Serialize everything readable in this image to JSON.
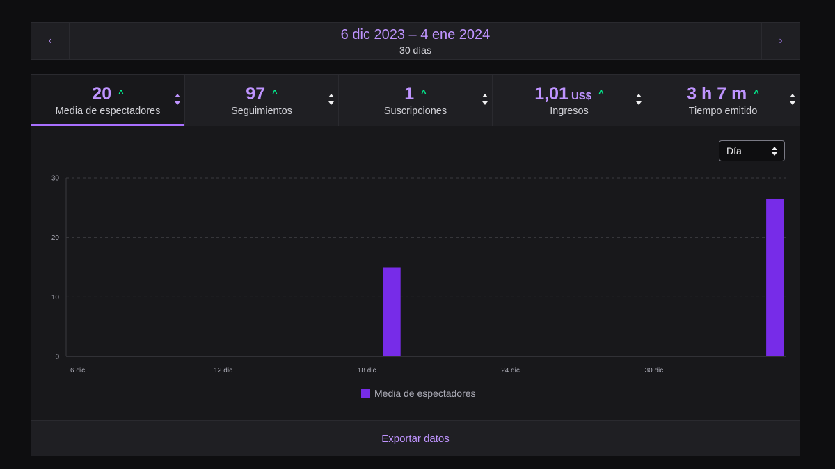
{
  "date_nav": {
    "prev_icon": "chevron-left-icon",
    "next_icon": "chevron-right-icon",
    "range": "6 dic 2023 – 4 ene 2024",
    "days": "30 días"
  },
  "tabs": [
    {
      "value": "20",
      "unit": "",
      "trend": "^",
      "label": "Media de espectadores",
      "active": true
    },
    {
      "value": "97",
      "unit": "",
      "trend": "^",
      "label": "Seguimientos",
      "active": false
    },
    {
      "value": "1",
      "unit": "",
      "trend": "^",
      "label": "Suscripciones",
      "active": false
    },
    {
      "value": "1,01",
      "unit": "US$",
      "trend": "^",
      "label": "Ingresos",
      "active": false
    },
    {
      "value": "3 h 7 m",
      "unit": "",
      "trend": "^",
      "label": "Tiempo emitido",
      "active": false
    }
  ],
  "interval_select": {
    "value": "Día"
  },
  "colors": {
    "accent": "#bf94ff",
    "bar": "#772ce8",
    "trend_up": "#00f593"
  },
  "chart_data": {
    "type": "bar",
    "categories": [
      "6 dic",
      "7 dic",
      "8 dic",
      "9 dic",
      "10 dic",
      "11 dic",
      "12 dic",
      "13 dic",
      "14 dic",
      "15 dic",
      "16 dic",
      "17 dic",
      "18 dic",
      "19 dic",
      "20 dic",
      "21 dic",
      "22 dic",
      "23 dic",
      "24 dic",
      "25 dic",
      "26 dic",
      "27 dic",
      "28 dic",
      "29 dic",
      "30 dic",
      "31 dic",
      "1 ene",
      "2 ene",
      "3 ene",
      "4 ene"
    ],
    "x_tick_labels": [
      "6 dic",
      "12 dic",
      "18 dic",
      "24 dic",
      "30 dic"
    ],
    "y_ticks": [
      0,
      10,
      20,
      30
    ],
    "ylim": [
      0,
      30
    ],
    "series": [
      {
        "name": "Media de espectadores",
        "values": [
          0,
          0,
          0,
          0,
          0,
          0,
          0,
          0,
          0,
          0,
          0,
          0,
          0,
          15,
          0,
          0,
          0,
          0,
          0,
          0,
          0,
          0,
          0,
          0,
          0,
          0,
          0,
          0,
          0,
          26.5
        ]
      }
    ],
    "grid": true,
    "legend_position": "bottom-center"
  },
  "footer": {
    "export_label": "Exportar datos"
  }
}
